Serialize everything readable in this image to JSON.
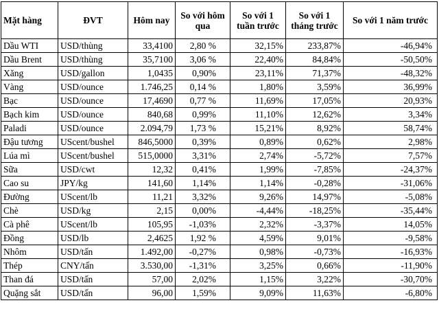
{
  "table": {
    "headers": [
      "Mặt hàng",
      "ĐVT",
      "Hôm nay",
      "So với hôm qua",
      "So với 1 tuần trước",
      "So với 1 tháng trước",
      "So với 1 năm trước"
    ],
    "rows": [
      [
        "Dầu WTI",
        "USD/thùng",
        "33,4100",
        "2,80 %",
        "32,15%",
        "233,87%",
        "-46,94%"
      ],
      [
        "Dầu Brent",
        "USD/thùng",
        "35,7100",
        "3,06 %",
        "22,40%",
        "84,84%",
        "-50,50%"
      ],
      [
        "Xăng",
        "USD/gallon",
        "1,0435",
        "0,90%",
        "23,11%",
        "71,37%",
        "-48,32%"
      ],
      [
        "Vàng",
        "USD/ounce",
        "1.746,25",
        "0,14 %",
        "1,80%",
        "3,59%",
        "36,99%"
      ],
      [
        "Bạc",
        "USD/ounce",
        "17,4690",
        "0,77 %",
        "11,69%",
        "17,05%",
        "20,93%"
      ],
      [
        "Bạch kim",
        "USD/ounce",
        "840,68",
        "0,99%",
        "11,10%",
        "12,62%",
        "3,34%"
      ],
      [
        "Paladi",
        "USD/ounce",
        "2.094,79",
        "1,73 %",
        "15,21%",
        "8,92%",
        "58,74%"
      ],
      [
        "Đậu tương",
        "UScent/bushel",
        "846,5000",
        "0,39%",
        "0,89%",
        "0,62%",
        "2,98%"
      ],
      [
        "Lúa mì",
        "UScent/bushel",
        "515,0000",
        "3,31%",
        "2,74%",
        "-5,72%",
        "7,57%"
      ],
      [
        "Sữa",
        "USD/cwt",
        "12,32",
        "0,41%",
        "1,99%",
        "-7,85%",
        "-24,37%"
      ],
      [
        "Cao su",
        "JPY/kg",
        "141,60",
        "1,14%",
        "1,14%",
        "-0,28%",
        "-31,06%"
      ],
      [
        "Đường",
        "UScent/lb",
        "11,21",
        "3,32%",
        "9,26%",
        "14,97%",
        "-5,08%"
      ],
      [
        "Chè",
        "USD/kg",
        "2,15",
        "0,00%",
        "-4,44%",
        "-18,25%",
        "-35,44%"
      ],
      [
        "Cà phê",
        "UScent/lb",
        "105,95",
        "-1,03%",
        "2,32%",
        "-3,37%",
        "14,05%"
      ],
      [
        "Đồng",
        "USD/lb",
        "2,4625",
        "1,92 %",
        "4,59%",
        "9,01%",
        "-9,58%"
      ],
      [
        "Nhôm",
        "USD/tấn",
        "1.492,00",
        "-0,27%",
        "0,98%",
        "-0,73%",
        "-16,93%"
      ],
      [
        "Thép",
        "CNY/tấn",
        "3.530,00",
        "-1,31%",
        "3,25%",
        "0,66%",
        "-11,90%"
      ],
      [
        "Than đá",
        "USD/tấn",
        "57,00",
        "2,02%",
        "1,15%",
        "3,22%",
        "-30,70%"
      ],
      [
        "Quặng sắt",
        "USD/tấn",
        "96,00",
        "1,59%",
        "9,09%",
        "11,63%",
        "-6,80%"
      ]
    ]
  }
}
